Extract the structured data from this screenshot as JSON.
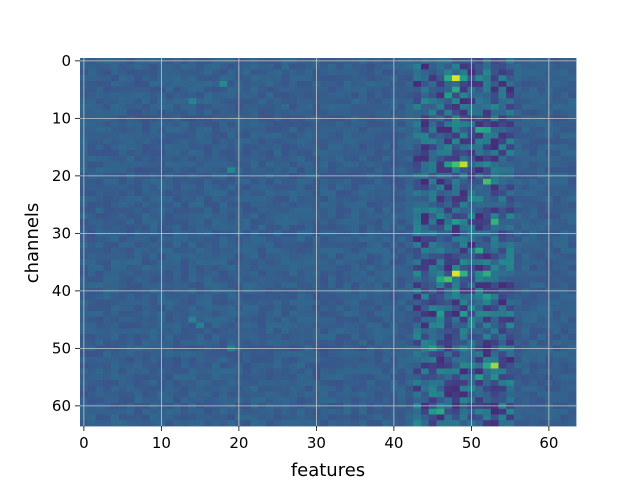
{
  "chart_data": {
    "type": "heatmap",
    "title": "",
    "xlabel": "features",
    "ylabel": "channels",
    "xlim": [
      -0.5,
      63.5
    ],
    "ylim": [
      63.5,
      -0.5
    ],
    "y_inverted": true,
    "rows": 64,
    "cols": 64,
    "colormap": "viridis",
    "grid": true,
    "xticks": [
      0,
      10,
      20,
      30,
      40,
      50,
      60
    ],
    "yticks": [
      0,
      10,
      20,
      30,
      40,
      50,
      60
    ],
    "value_range": [
      0,
      1
    ],
    "base_level": 0.3,
    "hotspots": [
      {
        "x": 48,
        "y": 3,
        "v": 0.95
      },
      {
        "x": 47,
        "y": 3,
        "v": 0.62
      },
      {
        "x": 49,
        "y": 3,
        "v": 0.55
      },
      {
        "x": 48,
        "y": 5,
        "v": 0.6
      },
      {
        "x": 47,
        "y": 6,
        "v": 0.55
      },
      {
        "x": 51,
        "y": 12,
        "v": 0.6
      },
      {
        "x": 52,
        "y": 12,
        "v": 0.58
      },
      {
        "x": 49,
        "y": 18,
        "v": 0.9
      },
      {
        "x": 48,
        "y": 18,
        "v": 0.7
      },
      {
        "x": 47,
        "y": 18,
        "v": 0.55
      },
      {
        "x": 52,
        "y": 21,
        "v": 0.7
      },
      {
        "x": 48,
        "y": 28,
        "v": 0.55
      },
      {
        "x": 53,
        "y": 28,
        "v": 0.65
      },
      {
        "x": 51,
        "y": 33,
        "v": 0.6
      },
      {
        "x": 52,
        "y": 37,
        "v": 0.62
      },
      {
        "x": 48,
        "y": 37,
        "v": 0.95
      },
      {
        "x": 49,
        "y": 37,
        "v": 0.65
      },
      {
        "x": 47,
        "y": 38,
        "v": 0.7
      },
      {
        "x": 46,
        "y": 38,
        "v": 0.6
      },
      {
        "x": 52,
        "y": 41,
        "v": 0.55
      },
      {
        "x": 46,
        "y": 44,
        "v": 0.55
      },
      {
        "x": 49,
        "y": 44,
        "v": 0.55
      },
      {
        "x": 45,
        "y": 50,
        "v": 0.55
      },
      {
        "x": 53,
        "y": 53,
        "v": 0.85
      },
      {
        "x": 52,
        "y": 53,
        "v": 0.6
      },
      {
        "x": 51,
        "y": 55,
        "v": 0.55
      },
      {
        "x": 53,
        "y": 55,
        "v": 0.5
      },
      {
        "x": 46,
        "y": 61,
        "v": 0.6
      },
      {
        "x": 45,
        "y": 61,
        "v": 0.55
      },
      {
        "x": 18,
        "y": 4,
        "v": 0.48
      },
      {
        "x": 14,
        "y": 7,
        "v": 0.45
      },
      {
        "x": 19,
        "y": 19,
        "v": 0.46
      },
      {
        "x": 14,
        "y": 45,
        "v": 0.45
      },
      {
        "x": 15,
        "y": 46,
        "v": 0.44
      },
      {
        "x": 19,
        "y": 50,
        "v": 0.44
      }
    ],
    "dark_band": {
      "x_from": 43,
      "x_to": 55,
      "level": 0.12
    }
  }
}
